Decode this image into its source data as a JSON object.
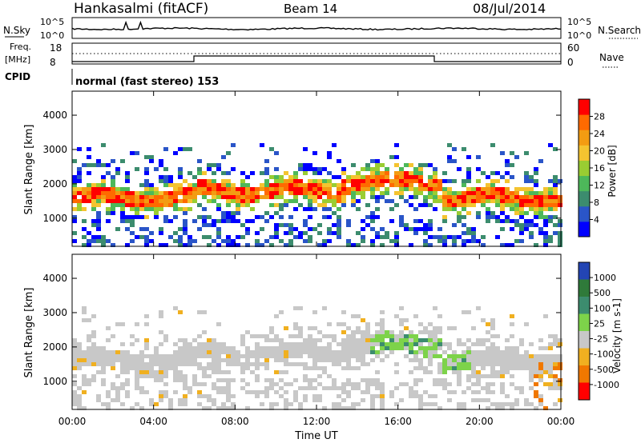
{
  "header": {
    "station": "Hankasalmi (fitACF)",
    "beam": "Beam 14",
    "date": "08/Jul/2014"
  },
  "noise_panel": {
    "left_label": "N.Sky",
    "left_ticks": [
      "10^5",
      "10^0"
    ],
    "right_label": "N.Search",
    "right_ticks": [
      "10^5",
      "10^0"
    ]
  },
  "freq_panel": {
    "left_label_line1": "Freq.",
    "left_label_line2": "[MHz]",
    "left_ticks": [
      "18",
      "8"
    ],
    "right_label": "Nave",
    "right_ticks": [
      "60",
      "0"
    ]
  },
  "cpid_panel": {
    "label": "CPID",
    "text": "normal (fast stereo) 153"
  },
  "chart_data": [
    {
      "type": "heatmap",
      "title": "",
      "xlabel": "",
      "ylabel": "Slant Range [km]",
      "x_ticks": [
        "00:00",
        "04:00",
        "08:00",
        "12:00",
        "16:00",
        "20:00",
        "00:00"
      ],
      "y_ticks": [
        "1000",
        "2000",
        "3000",
        "4000"
      ],
      "ylim": [
        180,
        4700
      ],
      "colorbar": {
        "label": "Power [dB]",
        "ticks": [
          "4",
          "8",
          "12",
          "16",
          "20",
          "24",
          "28"
        ],
        "range": [
          0,
          32
        ],
        "colors": [
          "#0000ff",
          "#2a55c8",
          "#3c8c6e",
          "#4db85a",
          "#9acd32",
          "#f4c430",
          "#f39c12",
          "#ff6a00",
          "#ff0000"
        ]
      },
      "echo_bands": [
        {
          "t_start": 0,
          "t_end": 6,
          "range_km": [
            1300,
            2000
          ],
          "level": "high"
        },
        {
          "t_start": 6,
          "t_end": 13,
          "range_km": [
            1500,
            2200
          ],
          "level": "medium"
        },
        {
          "t_start": 13,
          "t_end": 18,
          "range_km": [
            1700,
            2500
          ],
          "level": "high"
        },
        {
          "t_start": 18,
          "t_end": 24,
          "range_km": [
            1200,
            2100
          ],
          "level": "high"
        }
      ]
    },
    {
      "type": "heatmap",
      "title": "",
      "xlabel": "Time UT",
      "ylabel": "Slant Range [km]",
      "x_ticks": [
        "00:00",
        "04:00",
        "08:00",
        "12:00",
        "16:00",
        "20:00",
        "00:00"
      ],
      "y_ticks": [
        "1000",
        "2000",
        "3000",
        "4000"
      ],
      "ylim": [
        180,
        4700
      ],
      "colorbar": {
        "label": "Velocity [m s-1]",
        "ticks": [
          "1000",
          "500",
          "100",
          "25",
          "-25",
          "-100",
          "-500",
          "-1000"
        ],
        "colors": [
          "#2345b4",
          "#2f7a3a",
          "#3c8c6e",
          "#7dd34a",
          "#c8c8c8",
          "#f0b020",
          "#f07800",
          "#ff0000"
        ]
      }
    }
  ],
  "colors": {
    "axes": "#000000",
    "ground_scatter": "#c8c8c8"
  }
}
